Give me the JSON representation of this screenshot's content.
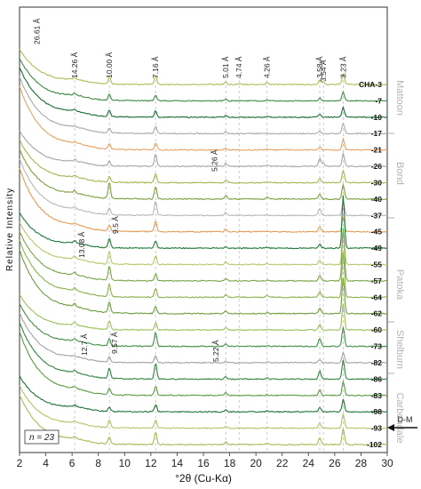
{
  "chart_data": {
    "type": "line",
    "xlabel": "°2θ (Cu-Kα)",
    "ylabel": "Relative Intensity",
    "xlim": [
      2,
      30
    ],
    "x_ticks": [
      "2",
      "4",
      "6",
      "8",
      "10",
      "12",
      "14",
      "16",
      "18",
      "20",
      "22",
      "24",
      "26",
      "28",
      "30"
    ],
    "n_label": "n = 23",
    "peak_lines": [
      {
        "label": "14.26 Å",
        "x": 6.2
      },
      {
        "label": "10.00 Å",
        "x": 8.84
      },
      {
        "label": "7.16 Å",
        "x": 12.36
      },
      {
        "label": "5.01 Å",
        "x": 17.7
      },
      {
        "label": "4.74 Å",
        "x": 18.72
      },
      {
        "label": "4.26 Å",
        "x": 20.85
      },
      {
        "label": "3.58 Å",
        "x": 24.86
      },
      {
        "label": "3.54 Å",
        "x": 25.14
      },
      {
        "label": "3.23 Å",
        "x": 26.65
      }
    ],
    "extra_labels": [
      {
        "label": "26.61 Å",
        "x": 3.32
      },
      {
        "label": "5.26 Å",
        "x": 16.85
      },
      {
        "label": "9.5 Å",
        "x": 9.3
      },
      {
        "label": "13.08 Å",
        "x": 6.75
      },
      {
        "label": "12.7 Å",
        "x": 6.95
      },
      {
        "label": "9.57 Å",
        "x": 9.23
      },
      {
        "label": "5.22 Å",
        "x": 16.95
      }
    ],
    "formations": [
      {
        "name": "Mattoon"
      },
      {
        "name": "Bond"
      },
      {
        "name": "Patoka"
      },
      {
        "name": "Shelburn"
      },
      {
        "name": "Carbondale"
      }
    ],
    "marker": {
      "label": "D-M"
    },
    "series": [
      {
        "name": "CHA-3",
        "color": "#a9bf55",
        "peaks": [
          [
            6.2,
            2
          ],
          [
            8.84,
            8
          ],
          [
            12.36,
            10
          ],
          [
            17.7,
            3
          ],
          [
            18.72,
            1
          ],
          [
            20.85,
            2
          ],
          [
            24.86,
            5
          ],
          [
            25.14,
            3
          ],
          [
            26.65,
            12
          ]
        ]
      },
      {
        "name": "-7",
        "color": "#3e8a47",
        "peaks": [
          [
            6.2,
            2
          ],
          [
            8.84,
            7
          ],
          [
            12.36,
            6
          ],
          [
            17.7,
            2
          ],
          [
            20.85,
            1
          ],
          [
            24.86,
            3
          ],
          [
            26.65,
            10
          ]
        ]
      },
      {
        "name": "-10",
        "color": "#1b6d34",
        "peaks": [
          [
            6.2,
            2
          ],
          [
            8.84,
            7
          ],
          [
            12.36,
            7
          ],
          [
            17.7,
            2
          ],
          [
            20.85,
            1
          ],
          [
            24.86,
            3
          ],
          [
            26.65,
            11
          ]
        ]
      },
      {
        "name": "-17",
        "color": "#a9a9a9",
        "peaks": [
          [
            6.2,
            1
          ],
          [
            8.84,
            5
          ],
          [
            12.36,
            8
          ],
          [
            17.7,
            2
          ],
          [
            20.85,
            1
          ],
          [
            24.86,
            3
          ],
          [
            26.65,
            12
          ]
        ]
      },
      {
        "name": "-21",
        "color": "#e9a060",
        "peaks": [
          [
            6.2,
            1
          ],
          [
            8.84,
            6
          ],
          [
            12.36,
            8
          ],
          [
            17.7,
            2
          ],
          [
            20.85,
            1
          ],
          [
            24.86,
            3
          ],
          [
            26.65,
            12
          ]
        ]
      },
      {
        "name": "-26",
        "color": "#a6a6a6",
        "peaks": [
          [
            6.2,
            2
          ],
          [
            8.84,
            5
          ],
          [
            12.36,
            14
          ],
          [
            17.7,
            3
          ],
          [
            20.85,
            1
          ],
          [
            24.86,
            9
          ],
          [
            25.14,
            4
          ],
          [
            26.65,
            14
          ]
        ]
      },
      {
        "name": "-30",
        "color": "#9fb94f",
        "peaks": [
          [
            6.2,
            2
          ],
          [
            8.84,
            6
          ],
          [
            12.36,
            10
          ],
          [
            17.7,
            3
          ],
          [
            20.85,
            1
          ],
          [
            24.86,
            5
          ],
          [
            26.65,
            14
          ]
        ]
      },
      {
        "name": "-40",
        "color": "#7e9f3e",
        "peaks": [
          [
            6.2,
            3
          ],
          [
            8.84,
            18
          ],
          [
            12.36,
            14
          ],
          [
            17.7,
            4
          ],
          [
            20.85,
            2
          ],
          [
            24.86,
            6
          ],
          [
            26.65,
            16
          ]
        ]
      },
      {
        "name": "-37",
        "color": "#b8b8b8",
        "peaks": [
          [
            6.2,
            2
          ],
          [
            8.84,
            8
          ],
          [
            12.36,
            16
          ],
          [
            17.7,
            3
          ],
          [
            20.85,
            1
          ],
          [
            24.86,
            8
          ],
          [
            26.65,
            16
          ]
        ]
      },
      {
        "name": "-45",
        "color": "#e39b54",
        "peaks": [
          [
            6.2,
            2
          ],
          [
            8.84,
            7
          ],
          [
            12.36,
            12
          ],
          [
            17.7,
            3
          ],
          [
            20.85,
            1
          ],
          [
            24.86,
            6
          ],
          [
            26.65,
            16
          ]
        ]
      },
      {
        "name": "-49",
        "color": "#1f7a3a",
        "peaks": [
          [
            6.2,
            3
          ],
          [
            8.84,
            11
          ],
          [
            12.36,
            8
          ],
          [
            17.7,
            2
          ],
          [
            20.85,
            1
          ],
          [
            24.86,
            5
          ],
          [
            26.65,
            60
          ]
        ]
      },
      {
        "name": "-55",
        "color": "#b7c86a",
        "peaks": [
          [
            6.2,
            3
          ],
          [
            8.84,
            14
          ],
          [
            12.36,
            10
          ],
          [
            17.7,
            3
          ],
          [
            20.85,
            1
          ],
          [
            24.86,
            5
          ],
          [
            26.65,
            40
          ]
        ]
      },
      {
        "name": "-57",
        "color": "#7aa54a",
        "peaks": [
          [
            6.2,
            3
          ],
          [
            8.84,
            16
          ],
          [
            12.36,
            8
          ],
          [
            17.7,
            3
          ],
          [
            20.85,
            1
          ],
          [
            24.86,
            6
          ],
          [
            26.65,
            60
          ]
        ]
      },
      {
        "name": "-64",
        "color": "#8fb04e",
        "peaks": [
          [
            6.2,
            3
          ],
          [
            8.84,
            14
          ],
          [
            12.36,
            10
          ],
          [
            17.7,
            3
          ],
          [
            20.85,
            2
          ],
          [
            24.86,
            6
          ],
          [
            26.65,
            50
          ]
        ]
      },
      {
        "name": "-62",
        "color": "#6e9f3c",
        "peaks": [
          [
            6.2,
            3
          ],
          [
            8.84,
            12
          ],
          [
            12.36,
            8
          ],
          [
            17.7,
            3
          ],
          [
            20.85,
            1
          ],
          [
            24.86,
            6
          ],
          [
            26.65,
            40
          ]
        ]
      },
      {
        "name": "-60",
        "color": "#9fbe5a",
        "peaks": [
          [
            6.2,
            3
          ],
          [
            8.84,
            10
          ],
          [
            12.36,
            8
          ],
          [
            17.7,
            3
          ],
          [
            20.85,
            1
          ],
          [
            24.86,
            6
          ],
          [
            26.65,
            30
          ]
        ]
      },
      {
        "name": "-73",
        "color": "#3f8f45",
        "peaks": [
          [
            6.2,
            2
          ],
          [
            8.84,
            8
          ],
          [
            12.36,
            16
          ],
          [
            17.7,
            3
          ],
          [
            20.85,
            1
          ],
          [
            24.86,
            9
          ],
          [
            26.65,
            22
          ]
        ]
      },
      {
        "name": "-82",
        "color": "#a3a3a3",
        "peaks": [
          [
            6.2,
            1
          ],
          [
            8.84,
            6
          ],
          [
            12.36,
            8
          ],
          [
            17.7,
            2
          ],
          [
            20.85,
            1
          ],
          [
            24.86,
            4
          ],
          [
            26.65,
            12
          ]
        ]
      },
      {
        "name": "-86",
        "color": "#2f8642",
        "peaks": [
          [
            6.2,
            2
          ],
          [
            8.84,
            12
          ],
          [
            12.36,
            18
          ],
          [
            17.7,
            3
          ],
          [
            20.85,
            2
          ],
          [
            24.86,
            9
          ],
          [
            26.65,
            22
          ]
        ]
      },
      {
        "name": "-83",
        "color": "#5c9a44",
        "peaks": [
          [
            6.2,
            2
          ],
          [
            8.84,
            7
          ],
          [
            12.36,
            10
          ],
          [
            17.7,
            3
          ],
          [
            20.85,
            1
          ],
          [
            24.86,
            6
          ],
          [
            26.65,
            16
          ]
        ]
      },
      {
        "name": "-98",
        "color": "#1e7436",
        "peaks": [
          [
            6.2,
            2
          ],
          [
            8.84,
            5
          ],
          [
            12.36,
            8
          ],
          [
            17.7,
            2
          ],
          [
            20.85,
            1
          ],
          [
            24.86,
            5
          ],
          [
            26.65,
            14
          ]
        ]
      },
      {
        "name": "-93",
        "color": "#b5c468",
        "peaks": [
          [
            6.2,
            2
          ],
          [
            8.84,
            9
          ],
          [
            12.36,
            10
          ],
          [
            17.7,
            2
          ],
          [
            20.85,
            1
          ],
          [
            24.86,
            6
          ],
          [
            26.65,
            16
          ]
        ]
      },
      {
        "name": "-102",
        "color": "#a4bc55",
        "peaks": [
          [
            6.2,
            2
          ],
          [
            8.84,
            8
          ],
          [
            12.36,
            14
          ],
          [
            17.7,
            3
          ],
          [
            20.85,
            1
          ],
          [
            24.86,
            8
          ],
          [
            26.65,
            18
          ]
        ]
      }
    ]
  }
}
